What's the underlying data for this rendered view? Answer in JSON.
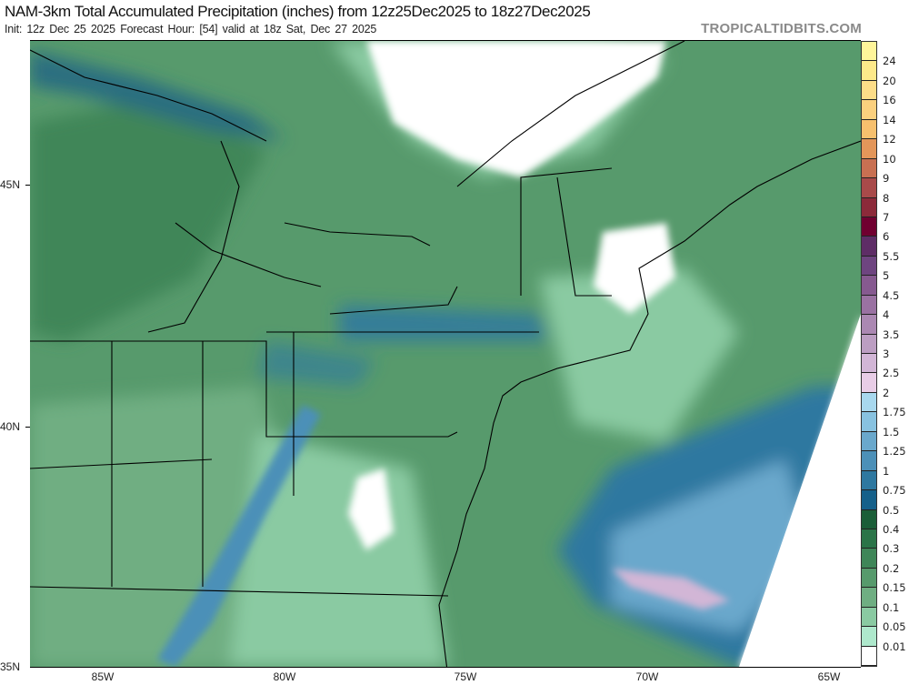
{
  "header": {
    "title": "NAM-3km Total Accumulated Precipitation (inches) from 12z25Dec2025 to 18z27Dec2025",
    "subtitle": "Init: 12z Dec 25 2025   Forecast Hour: [54]   valid at 18z Sat, Dec 27 2025",
    "brand": "TROPICALTIDBITS.COM"
  },
  "axes": {
    "lat_labels": [
      "45N",
      "40N",
      "35N"
    ],
    "lon_labels": [
      "85W",
      "80W",
      "75W",
      "70W",
      "65W"
    ]
  },
  "colorbar": {
    "units": "inches",
    "labels": [
      "24",
      "20",
      "16",
      "14",
      "12",
      "10",
      "9",
      "8",
      "7",
      "6",
      "5.5",
      "5",
      "4.5",
      "4",
      "3.5",
      "3",
      "2.5",
      "2",
      "1.75",
      "1.5",
      "1.25",
      "1",
      "0.75",
      "0.5",
      "0.4",
      "0.3",
      "0.2",
      "0.15",
      "0.1",
      "0.05",
      "0.01"
    ],
    "colors": [
      "#fff59a",
      "#fde98a",
      "#fddd88",
      "#fbd07e",
      "#f7c06e",
      "#e3965a",
      "#c87052",
      "#a84a4a",
      "#8c2a3a",
      "#700030",
      "#5e2d66",
      "#6e4580",
      "#865a90",
      "#9a72a2",
      "#ab88b2",
      "#bc9ec2",
      "#d2b6d6",
      "#e8cde6",
      "#a8d8ee",
      "#88c2e0",
      "#6aa8cc",
      "#4c90b8",
      "#2e78a0",
      "#15608a",
      "#1b5e38",
      "#2b7448",
      "#3f8658",
      "#579a6c",
      "#6fae82",
      "#8acaa2",
      "#aee8cc",
      "#ffffff"
    ]
  },
  "map_colors": {
    "land_border": "#000000",
    "county_border": "#8a8a8a"
  }
}
